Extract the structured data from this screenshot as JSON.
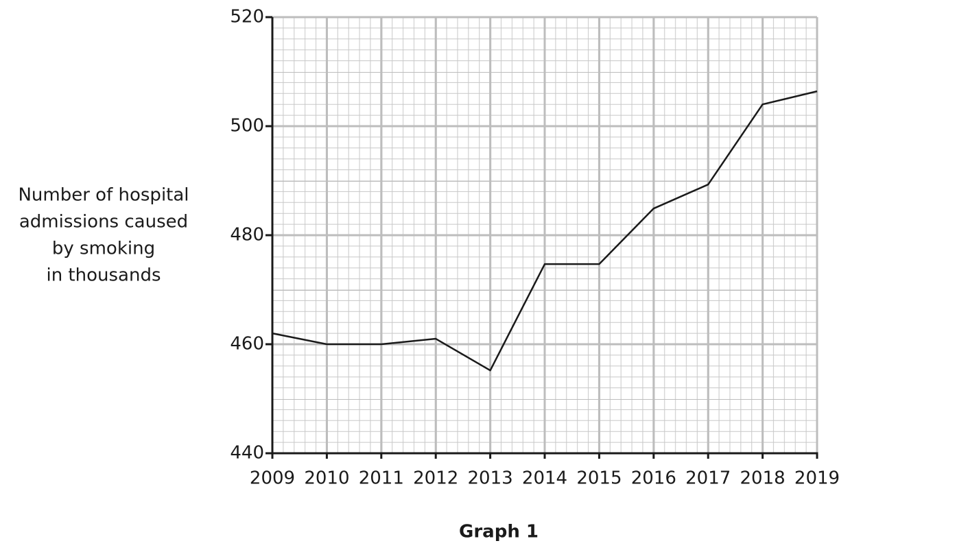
{
  "chart_data": {
    "type": "line",
    "title": "Graph 1",
    "ylabel": [
      "Number of hospital",
      "admissions caused",
      "by smoking",
      "in thousands"
    ],
    "x": [
      2009,
      2010,
      2011,
      2012,
      2013,
      2014,
      2015,
      2016,
      2017,
      2018,
      2019
    ],
    "series": [
      {
        "color": "#1a1a1a",
        "values": [
          462,
          460,
          460,
          461,
          455.2,
          474.7,
          474.7,
          484.9,
          489.3,
          504,
          506.4
        ]
      }
    ],
    "xlim": [
      2009,
      2019
    ],
    "xticks": [
      2009,
      2010,
      2011,
      2012,
      2013,
      2014,
      2015,
      2016,
      2017,
      2018,
      2019
    ],
    "ylim": [
      440,
      520
    ],
    "yticks": [
      440,
      460,
      480,
      500,
      520
    ],
    "grid": true
  }
}
